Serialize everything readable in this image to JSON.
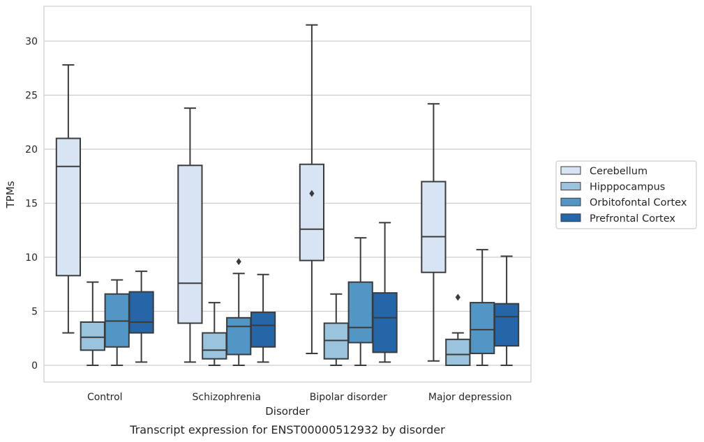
{
  "chart_data": {
    "type": "box",
    "caption": "Transcript expression for ENST00000512932 by disorder",
    "xlabel": "Disorder",
    "ylabel": "TPMs",
    "ylim": [
      -1.5,
      33
    ],
    "yticks": [
      0,
      5,
      10,
      15,
      20,
      25,
      30
    ],
    "grid": "horizontal",
    "legend_position": "right",
    "categories": [
      "Control",
      "Schizophrenia",
      "Bipolar disorder",
      "Major depression"
    ],
    "series": [
      {
        "name": "Cerebellum",
        "color": "#d6e4f3",
        "boxes": [
          {
            "whisker_low": 3.0,
            "q1": 8.3,
            "median": 18.4,
            "q3": 21.0,
            "whisker_high": 27.8,
            "outliers": []
          },
          {
            "whisker_low": 0.3,
            "q1": 3.9,
            "median": 7.6,
            "q3": 18.5,
            "whisker_high": 23.8,
            "outliers": []
          },
          {
            "whisker_low": 1.1,
            "q1": 9.7,
            "median": 12.6,
            "q3": 18.6,
            "whisker_high": 31.5,
            "outliers": [
              15.9
            ]
          },
          {
            "whisker_low": 0.4,
            "q1": 8.6,
            "median": 11.9,
            "q3": 17.0,
            "whisker_high": 24.2,
            "outliers": []
          }
        ]
      },
      {
        "name": "Hipppocampus",
        "color": "#9ac3de",
        "boxes": [
          {
            "whisker_low": 0.0,
            "q1": 1.4,
            "median": 2.6,
            "q3": 4.0,
            "whisker_high": 7.7,
            "outliers": []
          },
          {
            "whisker_low": 0.0,
            "q1": 0.6,
            "median": 1.4,
            "q3": 3.0,
            "whisker_high": 5.8,
            "outliers": []
          },
          {
            "whisker_low": 0.0,
            "q1": 0.6,
            "median": 2.3,
            "q3": 3.9,
            "whisker_high": 6.6,
            "outliers": []
          },
          {
            "whisker_low": 0.0,
            "q1": 0.0,
            "median": 1.0,
            "q3": 2.4,
            "whisker_high": 3.0,
            "outliers": [
              6.3
            ]
          }
        ]
      },
      {
        "name": "Orbitofontal Cortex",
        "color": "#5296c6",
        "boxes": [
          {
            "whisker_low": 0.0,
            "q1": 1.7,
            "median": 4.1,
            "q3": 6.6,
            "whisker_high": 7.9,
            "outliers": []
          },
          {
            "whisker_low": 0.0,
            "q1": 1.0,
            "median": 3.6,
            "q3": 4.4,
            "whisker_high": 8.5,
            "outliers": [
              9.6
            ]
          },
          {
            "whisker_low": 0.0,
            "q1": 2.1,
            "median": 3.5,
            "q3": 7.7,
            "whisker_high": 11.8,
            "outliers": []
          },
          {
            "whisker_low": 0.0,
            "q1": 1.1,
            "median": 3.3,
            "q3": 5.8,
            "whisker_high": 10.7,
            "outliers": []
          }
        ]
      },
      {
        "name": "Prefrontal Cortex",
        "color": "#2466a8",
        "boxes": [
          {
            "whisker_low": 0.3,
            "q1": 3.0,
            "median": 4.0,
            "q3": 6.8,
            "whisker_high": 8.7,
            "outliers": []
          },
          {
            "whisker_low": 0.3,
            "q1": 1.7,
            "median": 3.7,
            "q3": 4.9,
            "whisker_high": 8.4,
            "outliers": []
          },
          {
            "whisker_low": 0.3,
            "q1": 1.2,
            "median": 4.4,
            "q3": 6.7,
            "whisker_high": 13.2,
            "outliers": []
          },
          {
            "whisker_low": 0.0,
            "q1": 1.8,
            "median": 4.5,
            "q3": 5.7,
            "whisker_high": 10.1,
            "outliers": []
          }
        ]
      }
    ]
  }
}
